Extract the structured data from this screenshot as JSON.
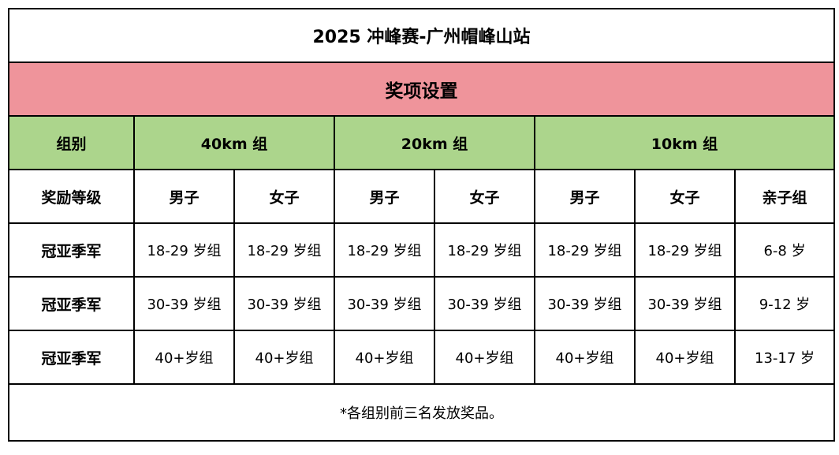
{
  "title": "2025 冲峰赛-广州帽峰山站",
  "section": "奖项设置",
  "header": {
    "group_label": "组别",
    "groups": [
      "40km 组",
      "20km 组",
      "10km 组"
    ]
  },
  "levels": {
    "label": "奖励等级",
    "cols": [
      "男子",
      "女子",
      "男子",
      "女子",
      "男子",
      "女子",
      "亲子组"
    ]
  },
  "rows": [
    {
      "label": "冠亚季军",
      "cells": [
        "18-29 岁组",
        "18-29 岁组",
        "18-29 岁组",
        "18-29 岁组",
        "18-29 岁组",
        "18-29 岁组",
        "6-8 岁"
      ]
    },
    {
      "label": "冠亚季军",
      "cells": [
        "30-39 岁组",
        "30-39 岁组",
        "30-39 岁组",
        "30-39 岁组",
        "30-39 岁组",
        "30-39 岁组",
        "9-12 岁"
      ]
    },
    {
      "label": "冠亚季军",
      "cells": [
        "40+岁组",
        "40+岁组",
        "40+岁组",
        "40+岁组",
        "40+岁组",
        "40+岁组",
        "13-17 岁"
      ]
    }
  ],
  "note": "*各组别前三名发放奖品。"
}
